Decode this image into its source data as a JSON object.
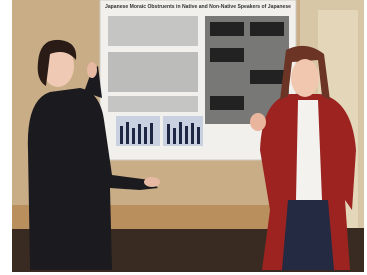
{
  "poster": {
    "title": "Japanese Moraic Obstruents in Native and Non-Native Speakers of Japanese"
  }
}
